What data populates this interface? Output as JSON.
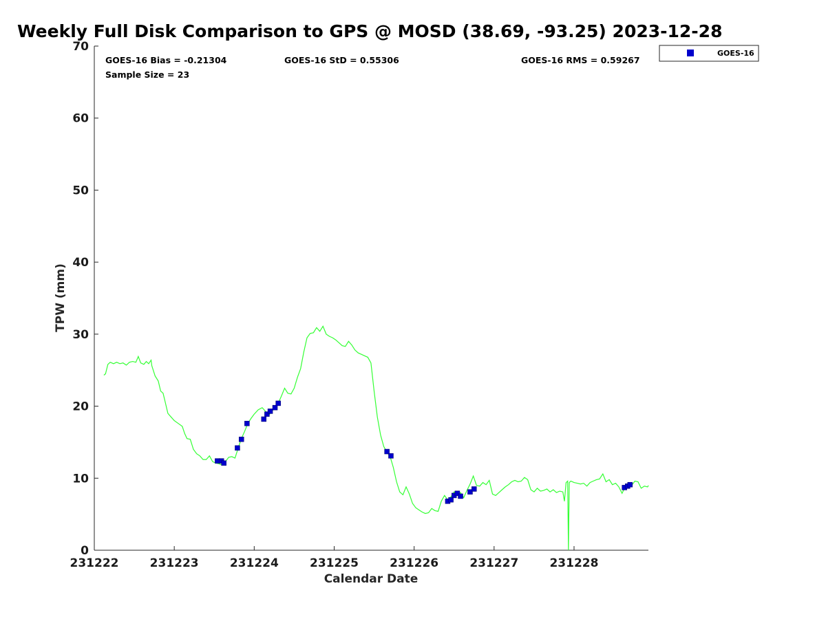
{
  "chart_data": {
    "type": "line",
    "title": "Weekly Full Disk Comparison to GPS @ MOSD (38.69, -93.25) 2023-12-28",
    "xlabel": "Calendar Date",
    "ylabel": "TPW (mm)",
    "xlim": [
      231222,
      231228.93
    ],
    "ylim": [
      0,
      70
    ],
    "x_ticks": [
      {
        "value": 231222,
        "label": "231222"
      },
      {
        "value": 231223,
        "label": "231223"
      },
      {
        "value": 231224,
        "label": "231224"
      },
      {
        "value": 231225,
        "label": "231225"
      },
      {
        "value": 231226,
        "label": "231226"
      },
      {
        "value": 231227,
        "label": "231227"
      },
      {
        "value": 231228,
        "label": "231228"
      }
    ],
    "y_ticks": [
      {
        "value": 0,
        "label": "0"
      },
      {
        "value": 10,
        "label": "10"
      },
      {
        "value": 20,
        "label": "20"
      },
      {
        "value": 30,
        "label": "30"
      },
      {
        "value": 40,
        "label": "40"
      },
      {
        "value": 50,
        "label": "50"
      },
      {
        "value": 60,
        "label": "60"
      },
      {
        "value": 70,
        "label": "70"
      }
    ],
    "grid": false,
    "legend_position": "outside-top-right",
    "stats": {
      "bias": "GOES-16 Bias = -0.21304",
      "std": "GOES-16 StD = 0.55306",
      "rms": "GOES-16 RMS = 0.59267",
      "sample_size": "Sample Size = 23"
    },
    "gps_line": {
      "color": "#33ff33",
      "points": [
        [
          231222.12,
          24.3
        ],
        [
          231222.14,
          24.5
        ],
        [
          231222.17,
          25.8
        ],
        [
          231222.2,
          26.1
        ],
        [
          231222.24,
          25.9
        ],
        [
          231222.28,
          26.1
        ],
        [
          231222.32,
          25.9
        ],
        [
          231222.36,
          26.0
        ],
        [
          231222.4,
          25.7
        ],
        [
          231222.44,
          26.1
        ],
        [
          231222.48,
          26.2
        ],
        [
          231222.52,
          26.1
        ],
        [
          231222.55,
          26.9
        ],
        [
          231222.58,
          26.0
        ],
        [
          231222.62,
          25.8
        ],
        [
          231222.65,
          26.2
        ],
        [
          231222.68,
          25.9
        ],
        [
          231222.71,
          26.4
        ],
        [
          231222.72,
          25.6
        ],
        [
          231222.76,
          24.2
        ],
        [
          231222.8,
          23.5
        ],
        [
          231222.83,
          22.1
        ],
        [
          231222.86,
          21.8
        ],
        [
          231222.88,
          20.9
        ],
        [
          231222.92,
          19.0
        ],
        [
          231222.96,
          18.5
        ],
        [
          231223.0,
          18.0
        ],
        [
          231223.05,
          17.6
        ],
        [
          231223.1,
          17.2
        ],
        [
          231223.13,
          16.2
        ],
        [
          231223.16,
          15.5
        ],
        [
          231223.2,
          15.4
        ],
        [
          231223.24,
          14.0
        ],
        [
          231223.28,
          13.4
        ],
        [
          231223.32,
          13.1
        ],
        [
          231223.36,
          12.6
        ],
        [
          231223.4,
          12.6
        ],
        [
          231223.44,
          13.1
        ],
        [
          231223.48,
          12.3
        ],
        [
          231223.52,
          12.1
        ],
        [
          231223.56,
          12.0
        ],
        [
          231223.6,
          11.8
        ],
        [
          231223.64,
          12.3
        ],
        [
          231223.68,
          12.9
        ],
        [
          231223.72,
          13.0
        ],
        [
          231223.76,
          12.8
        ],
        [
          231223.8,
          14.2
        ],
        [
          231223.84,
          15.5
        ],
        [
          231223.88,
          16.5
        ],
        [
          231223.92,
          17.6
        ],
        [
          231223.96,
          18.3
        ],
        [
          231224.0,
          18.9
        ],
        [
          231224.05,
          19.5
        ],
        [
          231224.1,
          19.8
        ],
        [
          231224.14,
          19.3
        ],
        [
          231224.18,
          18.7
        ],
        [
          231224.22,
          19.3
        ],
        [
          231224.26,
          19.8
        ],
        [
          231224.3,
          20.4
        ],
        [
          231224.34,
          21.4
        ],
        [
          231224.38,
          22.5
        ],
        [
          231224.42,
          21.8
        ],
        [
          231224.46,
          21.7
        ],
        [
          231224.5,
          22.5
        ],
        [
          231224.54,
          24.0
        ],
        [
          231224.58,
          25.2
        ],
        [
          231224.62,
          27.5
        ],
        [
          231224.66,
          29.5
        ],
        [
          231224.7,
          30.1
        ],
        [
          231224.74,
          30.2
        ],
        [
          231224.78,
          30.9
        ],
        [
          231224.82,
          30.4
        ],
        [
          231224.86,
          31.1
        ],
        [
          231224.9,
          30.0
        ],
        [
          231224.94,
          29.7
        ],
        [
          231224.98,
          29.5
        ],
        [
          231225.02,
          29.2
        ],
        [
          231225.06,
          28.8
        ],
        [
          231225.1,
          28.4
        ],
        [
          231225.14,
          28.3
        ],
        [
          231225.18,
          29.0
        ],
        [
          231225.22,
          28.5
        ],
        [
          231225.26,
          27.8
        ],
        [
          231225.3,
          27.4
        ],
        [
          231225.34,
          27.2
        ],
        [
          231225.38,
          27.0
        ],
        [
          231225.42,
          26.8
        ],
        [
          231225.46,
          26.0
        ],
        [
          231225.5,
          22.0
        ],
        [
          231225.54,
          18.5
        ],
        [
          231225.58,
          16.0
        ],
        [
          231225.62,
          14.4
        ],
        [
          231225.66,
          13.6
        ],
        [
          231225.7,
          13.0
        ],
        [
          231225.74,
          11.5
        ],
        [
          231225.78,
          9.5
        ],
        [
          231225.82,
          8.1
        ],
        [
          231225.86,
          7.7
        ],
        [
          231225.9,
          8.8
        ],
        [
          231225.94,
          7.8
        ],
        [
          231225.98,
          6.5
        ],
        [
          231226.02,
          5.9
        ],
        [
          231226.06,
          5.6
        ],
        [
          231226.1,
          5.3
        ],
        [
          231226.14,
          5.1
        ],
        [
          231226.18,
          5.2
        ],
        [
          231226.22,
          5.8
        ],
        [
          231226.26,
          5.5
        ],
        [
          231226.3,
          5.4
        ],
        [
          231226.34,
          6.8
        ],
        [
          231226.38,
          7.6
        ],
        [
          231226.42,
          7.0
        ],
        [
          231226.46,
          7.4
        ],
        [
          231226.5,
          8.1
        ],
        [
          231226.54,
          7.6
        ],
        [
          231226.58,
          8.0
        ],
        [
          231226.62,
          7.3
        ],
        [
          231226.66,
          8.3
        ],
        [
          231226.7,
          9.2
        ],
        [
          231226.74,
          10.3
        ],
        [
          231226.78,
          9.0
        ],
        [
          231226.82,
          8.9
        ],
        [
          231226.86,
          9.4
        ],
        [
          231226.9,
          9.1
        ],
        [
          231226.94,
          9.7
        ],
        [
          231226.98,
          7.8
        ],
        [
          231227.02,
          7.6
        ],
        [
          231227.06,
          8.0
        ],
        [
          231227.1,
          8.4
        ],
        [
          231227.14,
          8.8
        ],
        [
          231227.18,
          9.1
        ],
        [
          231227.22,
          9.5
        ],
        [
          231227.26,
          9.7
        ],
        [
          231227.3,
          9.5
        ],
        [
          231227.34,
          9.6
        ],
        [
          231227.38,
          10.1
        ],
        [
          231227.42,
          9.8
        ],
        [
          231227.46,
          8.4
        ],
        [
          231227.5,
          8.1
        ],
        [
          231227.54,
          8.6
        ],
        [
          231227.58,
          8.2
        ],
        [
          231227.62,
          8.3
        ],
        [
          231227.66,
          8.5
        ],
        [
          231227.7,
          8.1
        ],
        [
          231227.74,
          8.4
        ],
        [
          231227.78,
          8.0
        ],
        [
          231227.82,
          8.2
        ],
        [
          231227.86,
          8.1
        ],
        [
          231227.88,
          6.8
        ],
        [
          231227.9,
          9.4
        ],
        [
          231227.92,
          9.6
        ],
        [
          231227.93,
          0.0
        ],
        [
          231227.94,
          9.4
        ],
        [
          231227.96,
          9.6
        ],
        [
          231228.0,
          9.4
        ],
        [
          231228.04,
          9.3
        ],
        [
          231228.08,
          9.2
        ],
        [
          231228.12,
          9.3
        ],
        [
          231228.16,
          8.9
        ],
        [
          231228.2,
          9.4
        ],
        [
          231228.24,
          9.6
        ],
        [
          231228.28,
          9.8
        ],
        [
          231228.32,
          9.9
        ],
        [
          231228.36,
          10.6
        ],
        [
          231228.4,
          9.5
        ],
        [
          231228.44,
          9.8
        ],
        [
          231228.48,
          9.1
        ],
        [
          231228.52,
          9.3
        ],
        [
          231228.56,
          8.8
        ],
        [
          231228.6,
          7.9
        ],
        [
          231228.64,
          8.8
        ],
        [
          231228.68,
          9.4
        ],
        [
          231228.72,
          9.0
        ],
        [
          231228.76,
          9.6
        ],
        [
          231228.8,
          9.5
        ],
        [
          231228.84,
          8.6
        ],
        [
          231228.88,
          8.9
        ],
        [
          231228.92,
          8.8
        ],
        [
          231228.93,
          9.0
        ]
      ]
    },
    "series": [
      {
        "name": "GOES-16",
        "color": "#0000cc",
        "marker": "square",
        "points": [
          [
            231223.54,
            12.4
          ],
          [
            231223.59,
            12.4
          ],
          [
            231223.62,
            12.1
          ],
          [
            231223.79,
            14.2
          ],
          [
            231223.84,
            15.4
          ],
          [
            231223.91,
            17.6
          ],
          [
            231224.12,
            18.2
          ],
          [
            231224.16,
            18.9
          ],
          [
            231224.2,
            19.3
          ],
          [
            231224.26,
            19.8
          ],
          [
            231224.3,
            20.4
          ],
          [
            231225.66,
            13.7
          ],
          [
            231225.71,
            13.1
          ],
          [
            231226.42,
            6.8
          ],
          [
            231226.46,
            7.0
          ],
          [
            231226.5,
            7.6
          ],
          [
            231226.54,
            7.9
          ],
          [
            231226.58,
            7.5
          ],
          [
            231226.7,
            8.1
          ],
          [
            231226.75,
            8.5
          ],
          [
            231228.63,
            8.7
          ],
          [
            231228.67,
            8.9
          ],
          [
            231228.7,
            9.1
          ]
        ]
      }
    ]
  }
}
